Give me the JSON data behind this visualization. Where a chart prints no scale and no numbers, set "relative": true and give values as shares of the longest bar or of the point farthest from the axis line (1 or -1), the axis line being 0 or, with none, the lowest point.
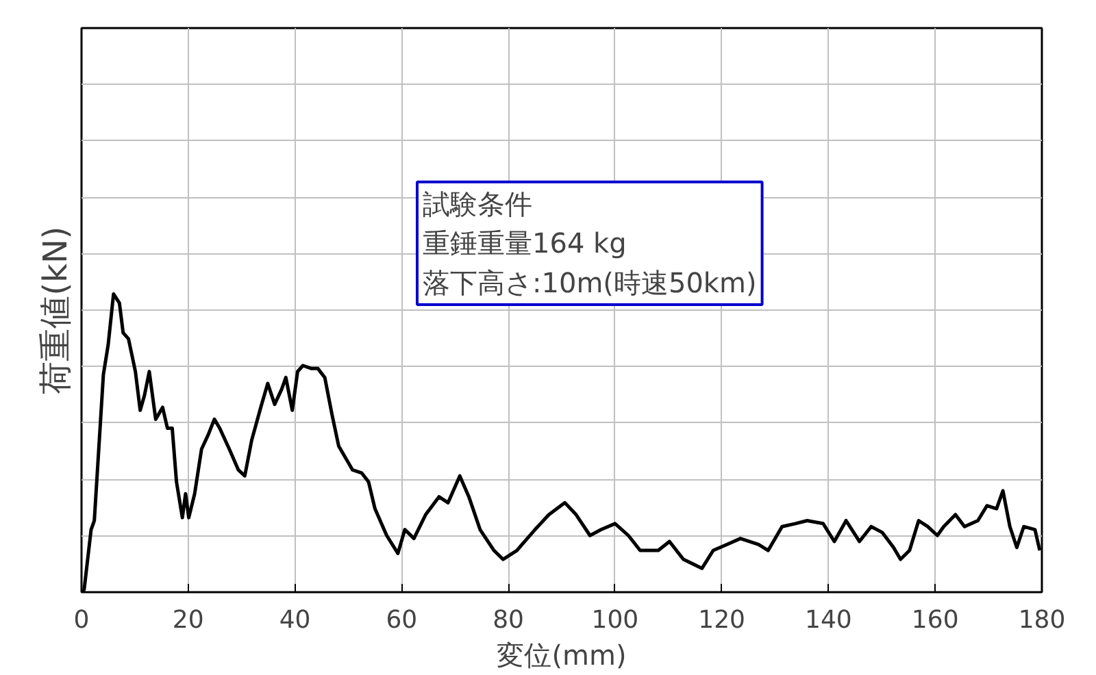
{
  "chart_data": {
    "type": "line",
    "xlabel": "変位(mm)",
    "ylabel": "荷重値(kN)",
    "relative": true,
    "grid": true,
    "marker": "none",
    "line_style": "solid",
    "xlim": [
      0,
      180
    ],
    "xticks": [
      0,
      20,
      40,
      60,
      80,
      100,
      120,
      140,
      160,
      180
    ],
    "annotations": [
      "試験条件",
      "重錘重量164 kg",
      "落下高さ:10m(時速50km)"
    ],
    "series": [
      {
        "color": "#000000",
        "x": [
          0.26,
          0.5,
          1.8,
          2.4,
          4.1,
          5.0,
          6.0,
          7.1,
          7.8,
          8.8,
          10.1,
          11.0,
          11.8,
          12.7,
          13.9,
          15.2,
          16.1,
          17.0,
          17.8,
          18.9,
          19.5,
          20.1,
          21.2,
          22.5,
          23.8,
          24.9,
          25.9,
          27.7,
          29.4,
          30.6,
          31.9,
          33.6,
          34.9,
          36.2,
          37.5,
          38.3,
          39.5,
          40.5,
          41.5,
          43.1,
          44.3,
          45.6,
          46.9,
          48.2,
          49.5,
          50.8,
          52.5,
          53.8,
          55.0,
          57.2,
          59.3,
          60.6,
          62.3,
          64.5,
          67.0,
          68.7,
          70.9,
          72.6,
          74.7,
          77.3,
          79.0,
          81.6,
          85.0,
          87.6,
          90.6,
          92.7,
          95.3,
          97.4,
          100.0,
          102.5,
          104.7,
          108.1,
          110.2,
          112.8,
          116.3,
          118.4,
          121.0,
          123.5,
          126.9,
          128.7,
          131.3,
          133.8,
          136.0,
          139.0,
          141.1,
          143.3,
          145.8,
          148.0,
          150.1,
          152.2,
          153.5,
          155.2,
          156.9,
          158.6,
          160.4,
          161.6,
          163.8,
          165.5,
          168.0,
          169.7,
          171.5,
          172.7,
          174.0,
          175.3,
          176.6,
          178.7,
          179.6
        ],
        "values": [
          0,
          0.01,
          0.21,
          0.24,
          0.73,
          0.83,
          1.0,
          0.97,
          0.87,
          0.85,
          0.74,
          0.61,
          0.66,
          0.74,
          0.58,
          0.62,
          0.55,
          0.55,
          0.37,
          0.25,
          0.33,
          0.25,
          0.33,
          0.48,
          0.53,
          0.58,
          0.55,
          0.48,
          0.41,
          0.39,
          0.51,
          0.62,
          0.7,
          0.63,
          0.68,
          0.72,
          0.61,
          0.74,
          0.76,
          0.75,
          0.75,
          0.72,
          0.6,
          0.49,
          0.45,
          0.41,
          0.4,
          0.37,
          0.28,
          0.19,
          0.13,
          0.21,
          0.18,
          0.26,
          0.32,
          0.3,
          0.39,
          0.32,
          0.21,
          0.14,
          0.11,
          0.14,
          0.21,
          0.26,
          0.3,
          0.26,
          0.19,
          0.21,
          0.23,
          0.19,
          0.14,
          0.14,
          0.17,
          0.11,
          0.08,
          0.14,
          0.16,
          0.18,
          0.16,
          0.14,
          0.22,
          0.23,
          0.24,
          0.23,
          0.17,
          0.24,
          0.17,
          0.22,
          0.2,
          0.15,
          0.11,
          0.14,
          0.24,
          0.22,
          0.19,
          0.22,
          0.26,
          0.22,
          0.24,
          0.29,
          0.28,
          0.34,
          0.22,
          0.15,
          0.22,
          0.21,
          0.14
        ]
      }
    ]
  }
}
